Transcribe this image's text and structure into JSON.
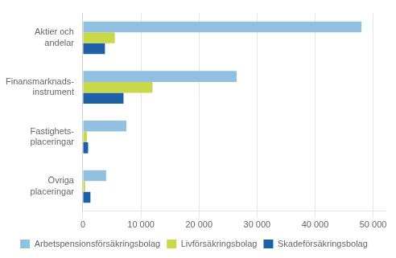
{
  "chart_data": {
    "type": "bar",
    "orientation": "horizontal",
    "categories": [
      "Aktier och\nandelar",
      "Finansmarknads-\ninstrument",
      "Fastighets-\nplaceringar",
      "Övriga\nplaceringar"
    ],
    "series": [
      {
        "name": "Arbetspensionsförsäkringsbolag",
        "color": "#92c0e0",
        "values": [
          48000,
          26500,
          7500,
          4000
        ]
      },
      {
        "name": "Livförsäkringsbolag",
        "color": "#c8d84b",
        "values": [
          5500,
          12000,
          700,
          400
        ]
      },
      {
        "name": "Skadeförsäkringsbolag",
        "color": "#1f5fa6",
        "values": [
          3800,
          7000,
          900,
          1300
        ]
      }
    ],
    "xlim": [
      0,
      52000
    ],
    "xticks": [
      0,
      {
        "value": 10000,
        "label": "10 000"
      },
      {
        "value": 20000,
        "label": "20 000"
      },
      {
        "value": 30000,
        "label": "30 000"
      },
      {
        "value": 40000,
        "label": "40 000"
      },
      {
        "value": 50000,
        "label": "50 000"
      }
    ],
    "grid": true,
    "legend": "bottom"
  }
}
